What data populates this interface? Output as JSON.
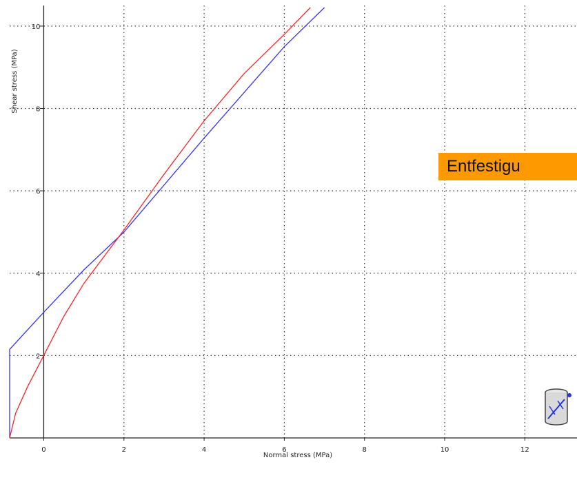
{
  "chart_data": {
    "type": "line",
    "xlabel": "Normal stress (MPa)",
    "ylabel": "Shear stress (MPa)",
    "xlim": [
      -0.85,
      13.3
    ],
    "ylim": [
      0,
      10.5
    ],
    "x_ticks": [
      0,
      2,
      4,
      6,
      8,
      10,
      12
    ],
    "y_ticks": [
      2,
      4,
      6,
      8,
      10
    ],
    "grid": true,
    "series": [
      {
        "color": "#3333ff",
        "points": [
          [
            -0.85,
            0
          ],
          [
            -0.85,
            2.15
          ],
          [
            0,
            3.05
          ],
          [
            1,
            4.08
          ],
          [
            2,
            5.0
          ],
          [
            4,
            7.28
          ],
          [
            6,
            9.5
          ],
          [
            7,
            10.45
          ]
        ]
      },
      {
        "color": "#ff2222",
        "points": [
          [
            -0.85,
            0
          ],
          [
            -0.7,
            0.6
          ],
          [
            -0.4,
            1.25
          ],
          [
            0,
            2.0
          ],
          [
            0.5,
            2.95
          ],
          [
            1,
            3.75
          ],
          [
            2,
            5.05
          ],
          [
            3,
            6.4
          ],
          [
            4,
            7.7
          ],
          [
            5,
            8.85
          ],
          [
            6,
            9.8
          ],
          [
            6.65,
            10.45
          ]
        ]
      }
    ],
    "annotation": "Entfestigu"
  }
}
